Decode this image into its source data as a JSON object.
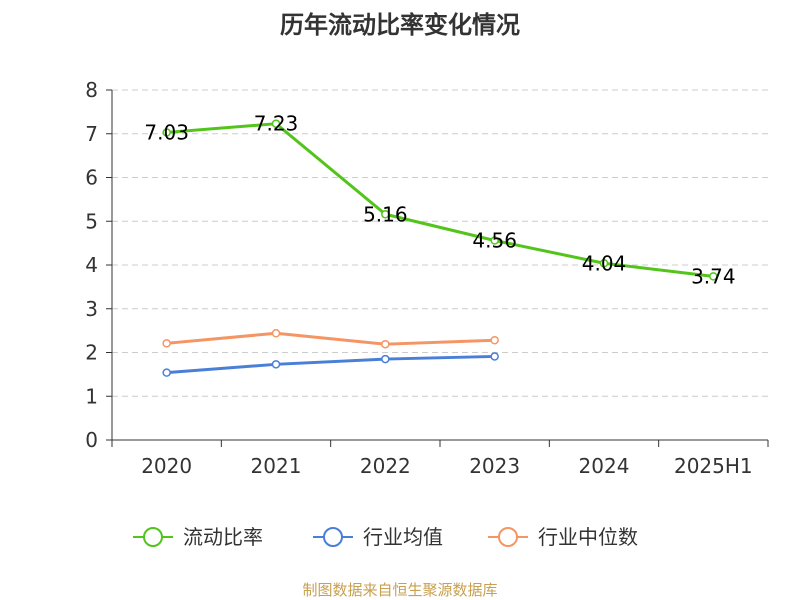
{
  "chart_data": {
    "type": "line",
    "title": "历年流动比率变化情况",
    "categories": [
      "2020",
      "2021",
      "2022",
      "2023",
      "2024",
      "2025H1"
    ],
    "y_ticks": [
      "0",
      "1",
      "2",
      "3",
      "4",
      "5",
      "6",
      "7",
      "8"
    ],
    "ylim": [
      0,
      8
    ],
    "grid": true,
    "legend_position": "bottom",
    "series": [
      {
        "name": "流动比率",
        "color": "#52c41a",
        "values": [
          7.03,
          7.23,
          5.16,
          4.56,
          4.04,
          3.74
        ],
        "labels": [
          "7.03",
          "7.23",
          "5.16",
          "4.56",
          "4.04",
          "3.74"
        ]
      },
      {
        "name": "行业均值",
        "color": "#4a7fd8",
        "values": [
          1.54,
          1.73,
          1.85,
          1.91,
          null,
          null
        ]
      },
      {
        "name": "行业中位数",
        "color": "#f59563",
        "values": [
          2.21,
          2.44,
          2.19,
          2.28,
          null,
          null
        ]
      }
    ],
    "source": "制图数据来自恒生聚源数据库"
  }
}
